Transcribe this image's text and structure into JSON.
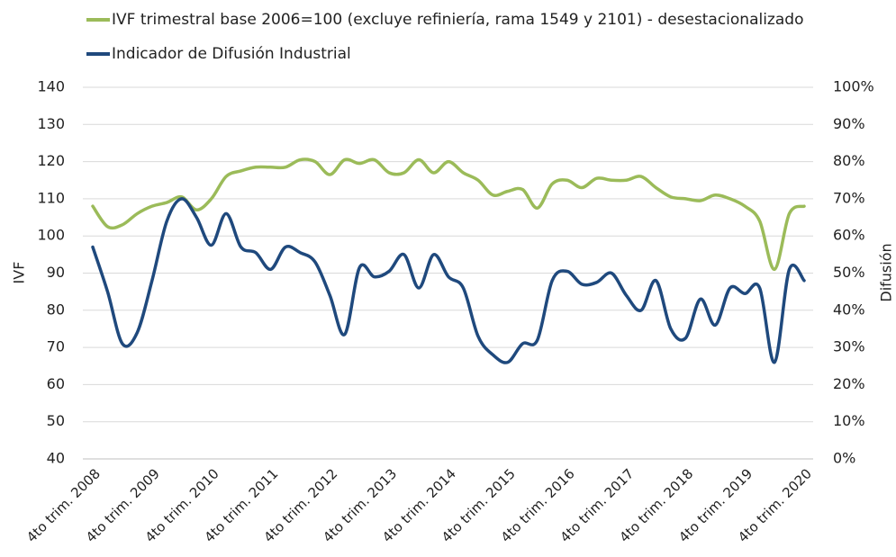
{
  "chart_data": {
    "type": "line",
    "categories": [
      "4to trim. 2008",
      null,
      null,
      null,
      "4to trim. 2009",
      null,
      null,
      null,
      "4to trim. 2010",
      null,
      null,
      null,
      "4to trim. 2011",
      null,
      null,
      null,
      "4to trim. 2012",
      null,
      null,
      null,
      "4to trim. 2013",
      null,
      null,
      null,
      "4to trim. 2014",
      null,
      null,
      null,
      "4to trim. 2015",
      null,
      null,
      null,
      "4to trim. 2016",
      null,
      null,
      null,
      "4to trim. 2017",
      null,
      null,
      null,
      "4to trim. 2018",
      null,
      null,
      null,
      "4to trim. 2019",
      null,
      null,
      null,
      "4to trim. 2020"
    ],
    "series": [
      {
        "name": "IVF trimestral base 2006=100 (excluye refiniería, rama 1549 y 2101) - desestacionalizado",
        "color": "#9bbb59",
        "values": [
          108,
          102.5,
          103,
          106,
          108,
          109,
          110.5,
          107,
          110,
          116,
          117.5,
          118.5,
          118.5,
          118.5,
          120.5,
          120,
          116.5,
          120.5,
          119.5,
          120.5,
          117,
          117,
          120.5,
          117,
          120,
          117,
          115,
          111,
          112,
          112.5,
          107.5,
          114,
          115,
          113,
          115.5,
          115,
          115,
          116,
          113,
          110.5,
          110,
          109.5,
          111,
          110,
          108,
          104,
          91,
          106,
          108
        ]
      },
      {
        "name": "Indicador de Difusión Industrial",
        "color": "#1f497d",
        "axis": "y2",
        "values": [
          57,
          45,
          31,
          34,
          48,
          64,
          70,
          65,
          57.5,
          66,
          57,
          55.5,
          51,
          57,
          55.5,
          53,
          44,
          33.5,
          51.5,
          49,
          50.5,
          55,
          46,
          55,
          49,
          46,
          33,
          28,
          26,
          31,
          32,
          48,
          50.5,
          47,
          47.5,
          50,
          44,
          40,
          48,
          35,
          32.5,
          43,
          36,
          46,
          44.5,
          46,
          26,
          51,
          48
        ]
      }
    ],
    "y_label": "IVF",
    "y2_label": "Difusión",
    "ylim": [
      40,
      140
    ],
    "yticks": [
      40,
      50,
      60,
      70,
      80,
      90,
      100,
      110,
      120,
      130,
      140
    ],
    "y2lim": [
      0,
      100
    ],
    "y2ticks": [
      {
        "value": 0,
        "label": "0%"
      },
      {
        "value": 10,
        "label": "10%"
      },
      {
        "value": 20,
        "label": "20%"
      },
      {
        "value": 30,
        "label": "30%"
      },
      {
        "value": 40,
        "label": "40%"
      },
      {
        "value": 50,
        "label": "50%"
      },
      {
        "value": 60,
        "label": "60%"
      },
      {
        "value": 70,
        "label": "70%"
      },
      {
        "value": 80,
        "label": "80%"
      },
      {
        "value": 90,
        "label": "90%"
      },
      {
        "value": 100,
        "label": "100%"
      }
    ],
    "grid": true
  }
}
